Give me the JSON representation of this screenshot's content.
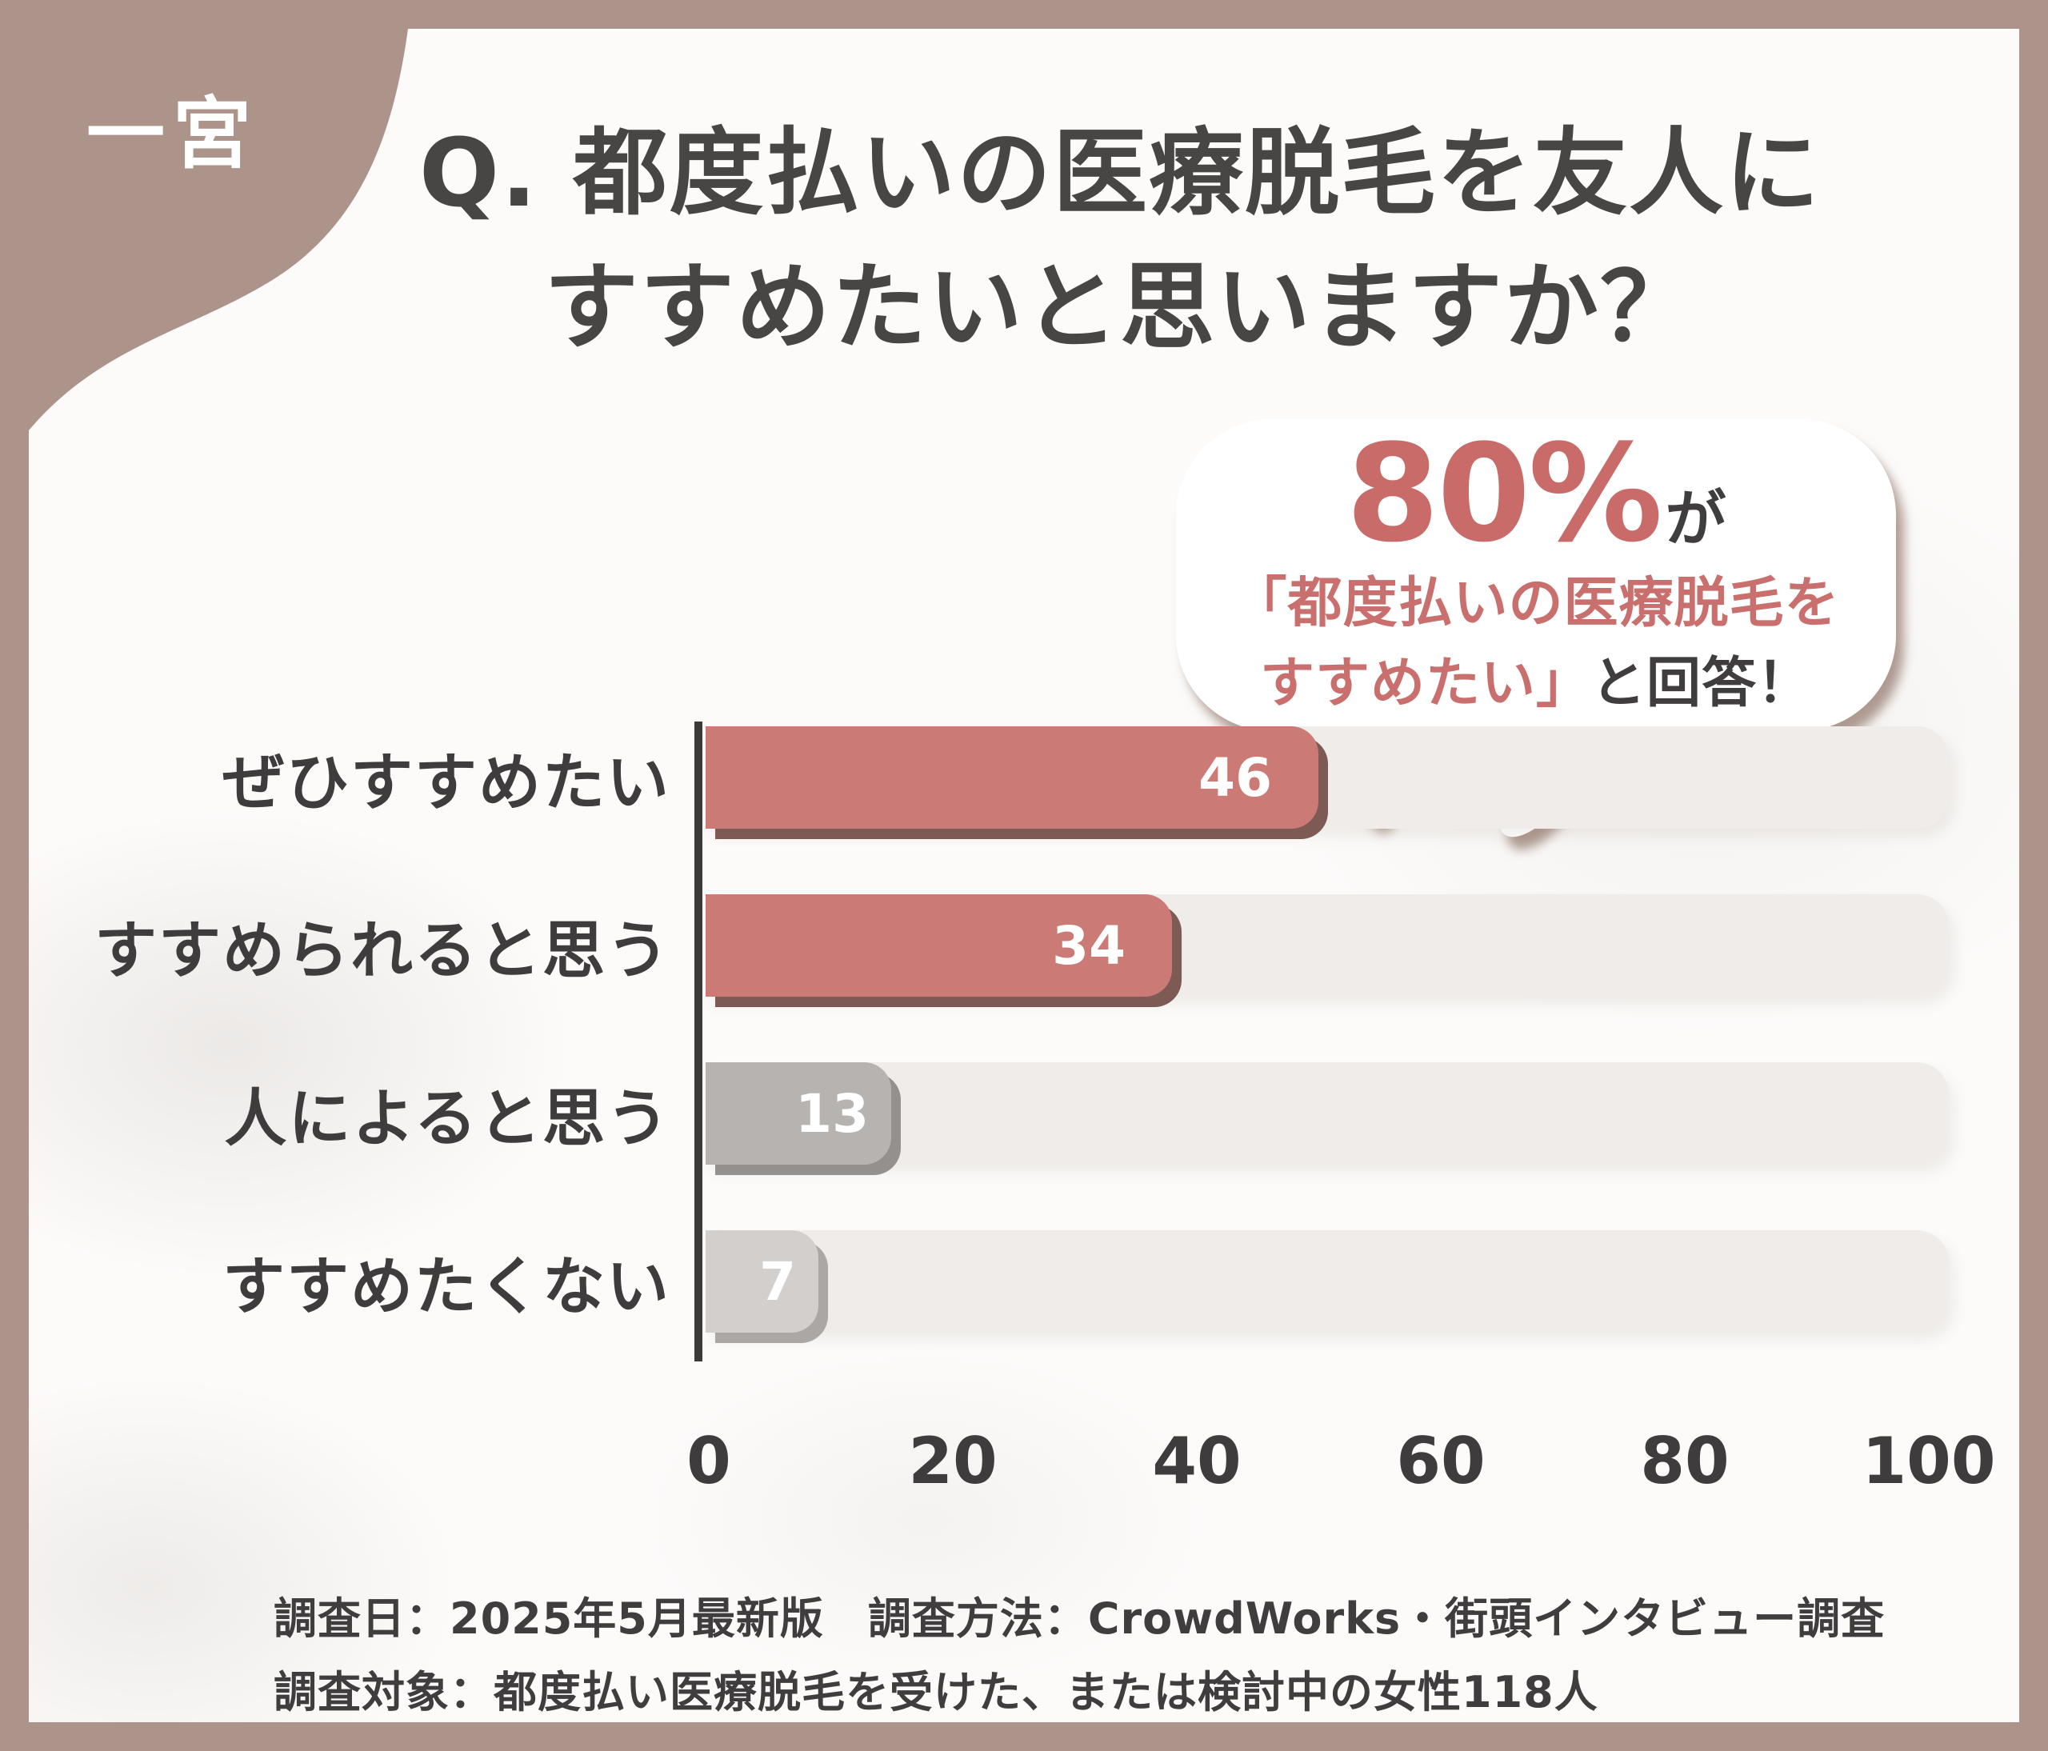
{
  "brand": {
    "logo": "一宮"
  },
  "header": {
    "title_line1": "Q. 都度払いの医療脱毛を友人に",
    "title_line2": "すすめたいと思いますか？"
  },
  "callout": {
    "stat": "80%",
    "particle": "が",
    "quote_line1": "「都度払いの医療脱毛を",
    "quote_line2": "すすめたい」",
    "answer_suffix": "と回答！"
  },
  "chart_data": {
    "type": "bar",
    "orientation": "horizontal",
    "title": "Q. 都度払いの医療脱毛を友人にすすめたいと思いますか？",
    "categories": [
      "ぜひすすめたい",
      "すすめられると思う",
      "人によると思う",
      "すすめたくない"
    ],
    "values": [
      46,
      34,
      13,
      7
    ],
    "xlabel": "",
    "ylabel": "",
    "xlim": [
      0,
      100
    ],
    "x_ticks": [
      0,
      20,
      40,
      60,
      80,
      100
    ],
    "grid": false,
    "legend": false,
    "bar_colors": [
      "#cb7a75",
      "#cb7a75",
      "#b7b3b1",
      "#d2cfcd"
    ],
    "bar_shadow_colors": [
      "#7d5a54",
      "#7d5a54",
      "#93908d",
      "#aba7a4"
    ],
    "track_color": "#efecea",
    "value_label_color": "#ffffff",
    "annotation": "80%が「都度払いの医療脱毛をすすめたい」と回答！"
  },
  "footnote": {
    "line1": "調査日：2025年5月最新版　調査方法：CrowdWorks・街頭インタビュー調査",
    "line2": "調査対象：都度払い医療脱毛を受けた、または検討中の女性118人"
  },
  "colors": {
    "frame": "#ac948b",
    "canvas_bg": "#fcfbfa",
    "text_dark": "#484545",
    "accent_pink": "#c96f6d",
    "bubble_fill": "#ffffff",
    "bubble_shadow": "#9c8278",
    "axis": "#3c3a39"
  }
}
